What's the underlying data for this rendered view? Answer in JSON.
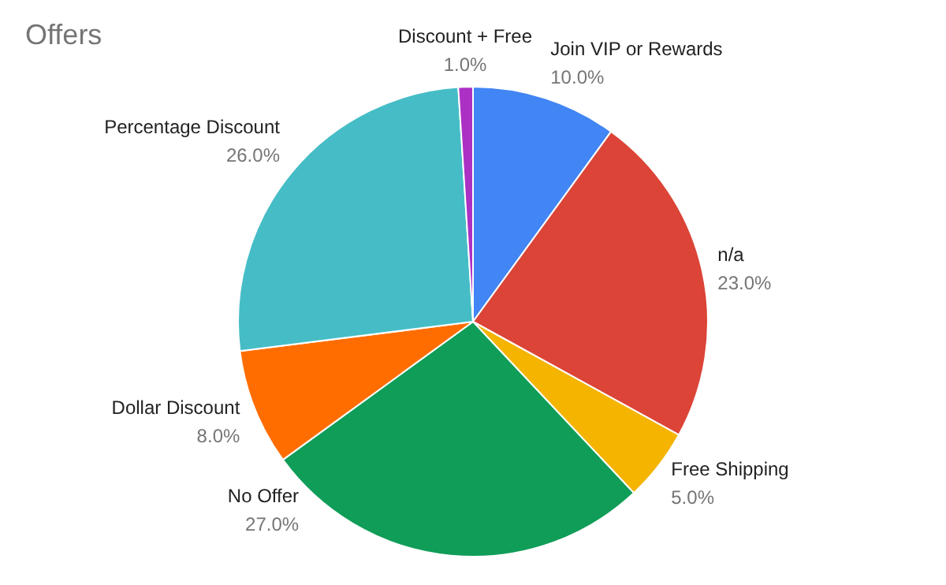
{
  "chart_data": {
    "type": "pie",
    "title": "Offers",
    "categories": [
      "Join VIP or Rewards",
      "n/a",
      "Free Shipping",
      "No Offer",
      "Dollar Discount",
      "Percentage Discount",
      "Discount + Free"
    ],
    "values": [
      10,
      23,
      5,
      27,
      8,
      26,
      1
    ],
    "colors": [
      "#4285f4",
      "#db4437",
      "#f4b400",
      "#0f9d58",
      "#ff6d01",
      "#46bdc6",
      "#ab30c4"
    ],
    "value_labels": [
      "10.0%",
      "23.0%",
      "5.0%",
      "27.0%",
      "8.0%",
      "26.0%",
      "1.0%"
    ]
  }
}
